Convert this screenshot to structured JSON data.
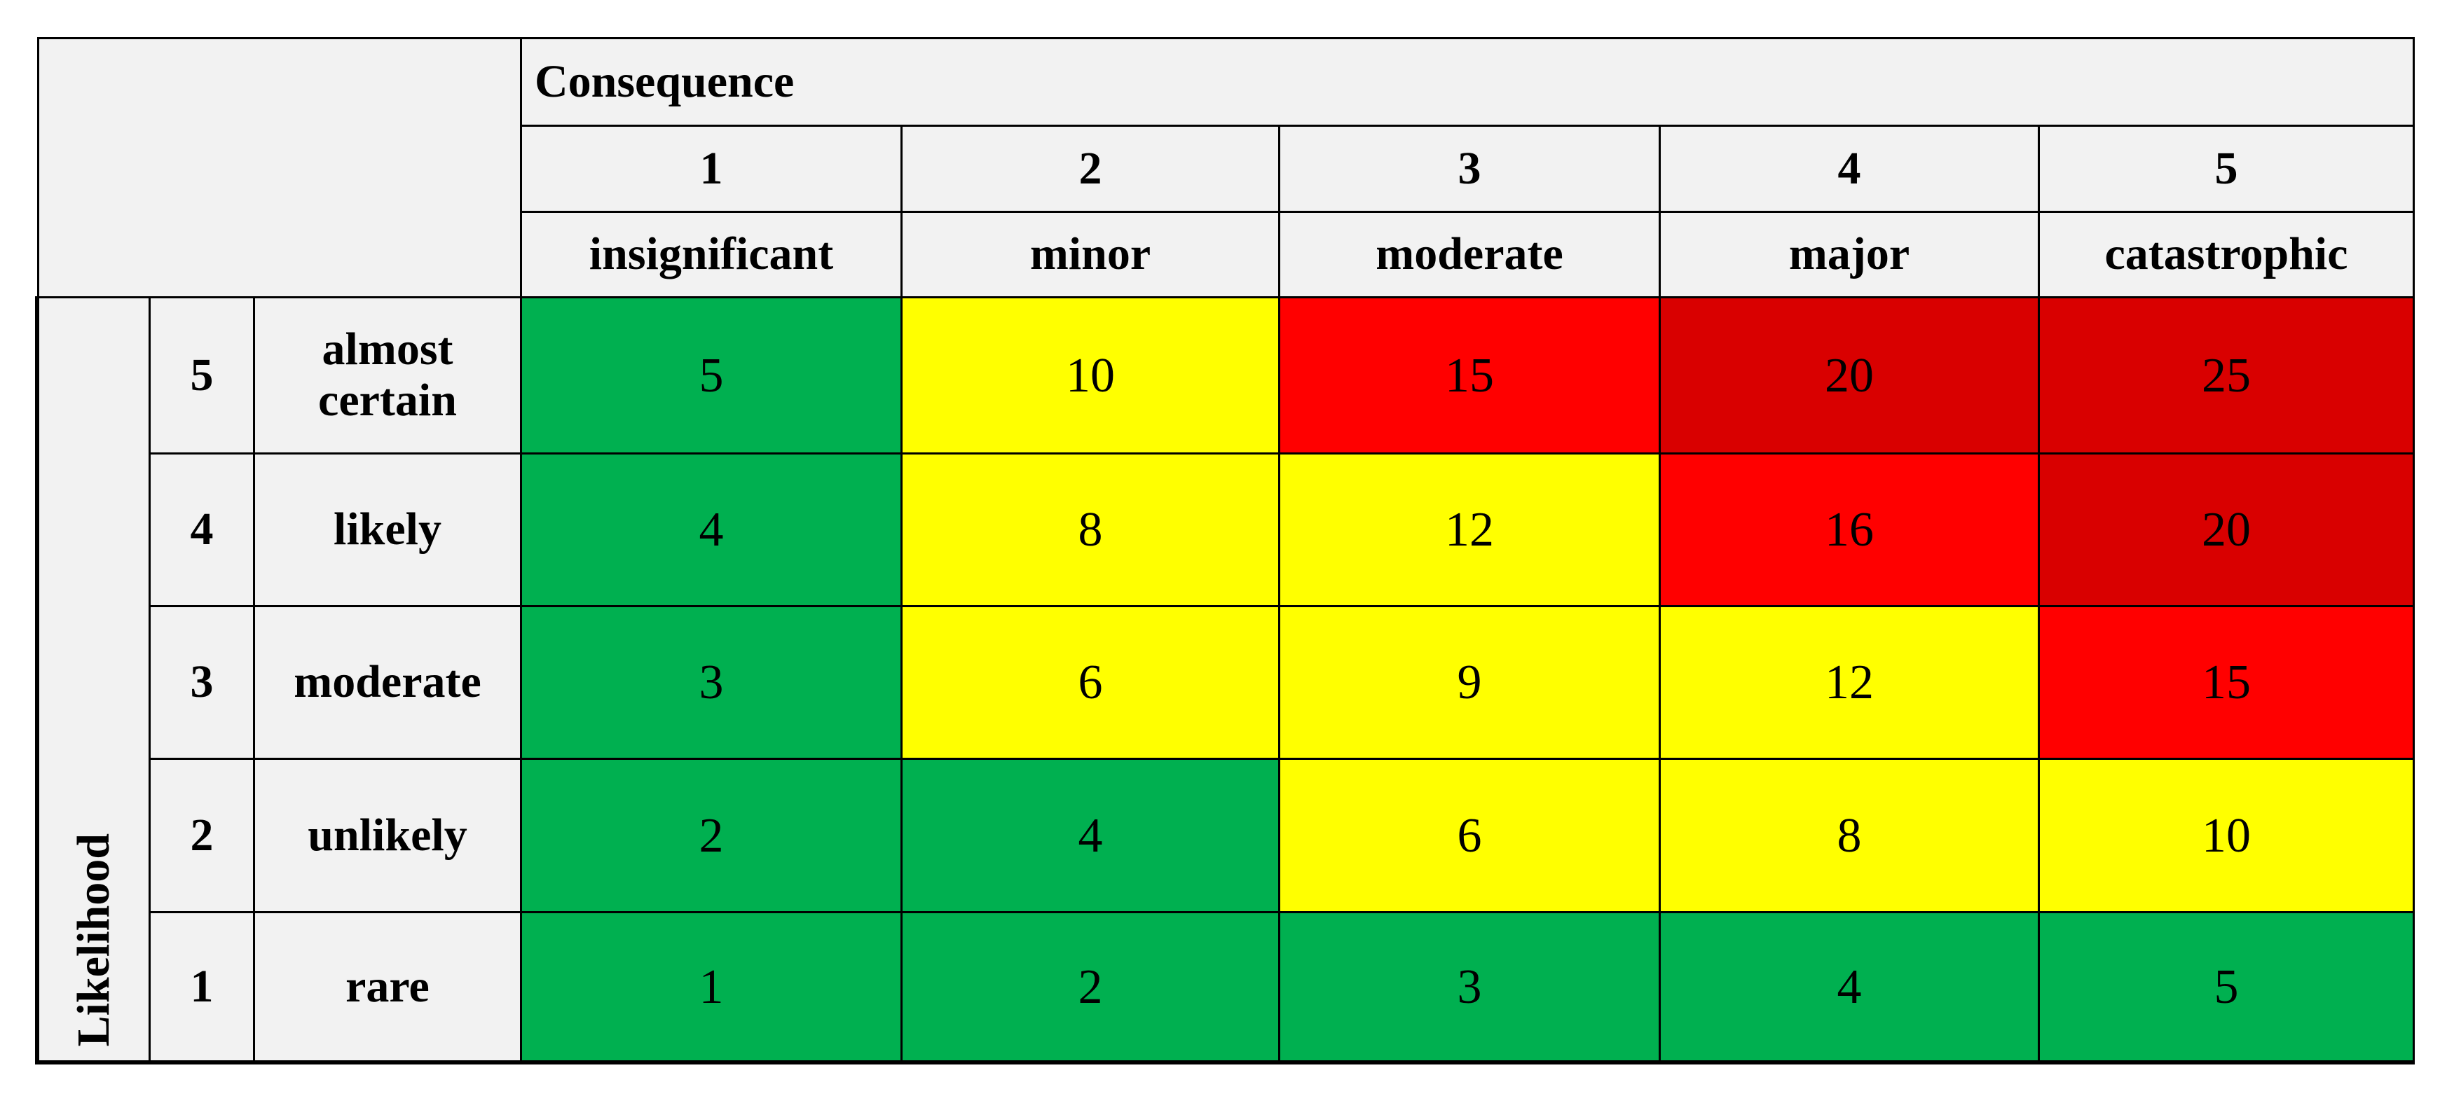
{
  "header": {
    "title": "Consequence",
    "side_title": "Likelihood"
  },
  "consequences": [
    {
      "number": "1",
      "label": "insignificant"
    },
    {
      "number": "2",
      "label": "minor"
    },
    {
      "number": "3",
      "label": "moderate"
    },
    {
      "number": "4",
      "label": "major"
    },
    {
      "number": "5",
      "label": "catastrophic"
    }
  ],
  "rows": [
    {
      "number": "5",
      "label": "almost certain",
      "values": [
        5,
        10,
        15,
        20,
        25
      ],
      "colors": [
        "#00b050",
        "#ffff00",
        "#ff0000",
        "#d90000",
        "#d90000"
      ]
    },
    {
      "number": "4",
      "label": "likely",
      "values": [
        4,
        8,
        12,
        16,
        20
      ],
      "colors": [
        "#00b050",
        "#ffff00",
        "#ffff00",
        "#ff0000",
        "#d90000"
      ]
    },
    {
      "number": "3",
      "label": "moderate",
      "values": [
        3,
        6,
        9,
        12,
        15
      ],
      "colors": [
        "#00b050",
        "#ffff00",
        "#ffff00",
        "#ffff00",
        "#ff0000"
      ]
    },
    {
      "number": "2",
      "label": "unlikely",
      "values": [
        2,
        4,
        6,
        8,
        10
      ],
      "colors": [
        "#00b050",
        "#00b050",
        "#ffff00",
        "#ffff00",
        "#ffff00"
      ]
    },
    {
      "number": "1",
      "label": "rare",
      "values": [
        1,
        2,
        3,
        4,
        5
      ],
      "colors": [
        "#00b050",
        "#00b050",
        "#00b050",
        "#00b050",
        "#00b050"
      ]
    }
  ]
}
